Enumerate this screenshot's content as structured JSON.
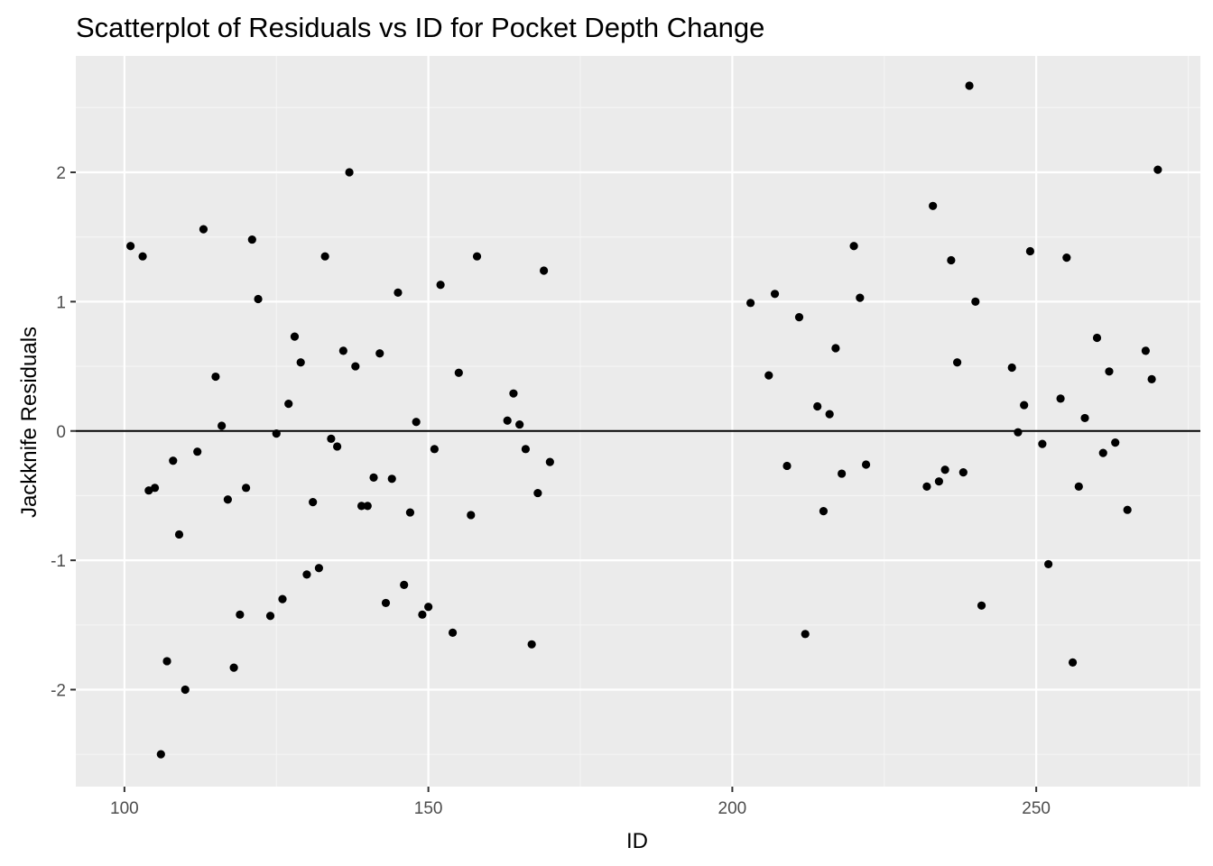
{
  "colors": {
    "panel_background": "#ebebeb",
    "grid_major": "#ffffff",
    "grid_minor": "#f5f5f5",
    "point": "#000000",
    "reference_line": "#000000",
    "tick_label": "#4d4d4d",
    "tick_mark": "#333333"
  },
  "chart_data": {
    "type": "scatter",
    "title": "Scatterplot of Residuals vs ID for Pocket Depth Change",
    "xlabel": "ID",
    "ylabel": "Jackknife Residuals",
    "xlim": [
      92,
      277
    ],
    "ylim": [
      -2.75,
      2.9
    ],
    "x_ticks": [
      100,
      150,
      200,
      250
    ],
    "x_tick_labels": [
      "100",
      "150",
      "200",
      "250"
    ],
    "y_ticks": [
      -2,
      -1,
      0,
      1,
      2
    ],
    "y_tick_labels": [
      "-2",
      "-1",
      "0",
      "1",
      "2"
    ],
    "x_minor_ticks": [
      125,
      175,
      225,
      275
    ],
    "y_minor_ticks": [
      -2.5,
      -1.5,
      -0.5,
      0.5,
      1.5,
      2.5
    ],
    "grid": true,
    "legend": "none",
    "hline": 0,
    "points": [
      {
        "x": 101,
        "y": 1.43
      },
      {
        "x": 103,
        "y": 1.35
      },
      {
        "x": 104,
        "y": -0.46
      },
      {
        "x": 105,
        "y": -0.44
      },
      {
        "x": 106,
        "y": -2.5
      },
      {
        "x": 107,
        "y": -1.78
      },
      {
        "x": 108,
        "y": -0.23
      },
      {
        "x": 109,
        "y": -0.8
      },
      {
        "x": 110,
        "y": -2.0
      },
      {
        "x": 112,
        "y": -0.16
      },
      {
        "x": 113,
        "y": 1.56
      },
      {
        "x": 115,
        "y": 0.42
      },
      {
        "x": 116,
        "y": 0.04
      },
      {
        "x": 117,
        "y": -0.53
      },
      {
        "x": 118,
        "y": -1.83
      },
      {
        "x": 119,
        "y": -1.42
      },
      {
        "x": 120,
        "y": -0.44
      },
      {
        "x": 121,
        "y": 1.48
      },
      {
        "x": 122,
        "y": 1.02
      },
      {
        "x": 124,
        "y": -1.43
      },
      {
        "x": 125,
        "y": -0.02
      },
      {
        "x": 126,
        "y": -1.3
      },
      {
        "x": 127,
        "y": 0.21
      },
      {
        "x": 128,
        "y": 0.73
      },
      {
        "x": 129,
        "y": 0.53
      },
      {
        "x": 130,
        "y": -1.11
      },
      {
        "x": 131,
        "y": -0.55
      },
      {
        "x": 132,
        "y": -1.06
      },
      {
        "x": 133,
        "y": 1.35
      },
      {
        "x": 134,
        "y": -0.06
      },
      {
        "x": 135,
        "y": -0.12
      },
      {
        "x": 136,
        "y": 0.62
      },
      {
        "x": 137,
        "y": 2.0
      },
      {
        "x": 138,
        "y": 0.5
      },
      {
        "x": 139,
        "y": -0.58
      },
      {
        "x": 140,
        "y": -0.58
      },
      {
        "x": 141,
        "y": -0.36
      },
      {
        "x": 142,
        "y": 0.6
      },
      {
        "x": 143,
        "y": -1.33
      },
      {
        "x": 144,
        "y": -0.37
      },
      {
        "x": 145,
        "y": 1.07
      },
      {
        "x": 146,
        "y": -1.19
      },
      {
        "x": 147,
        "y": -0.63
      },
      {
        "x": 148,
        "y": 0.07
      },
      {
        "x": 149,
        "y": -1.42
      },
      {
        "x": 150,
        "y": -1.36
      },
      {
        "x": 151,
        "y": -0.14
      },
      {
        "x": 152,
        "y": 1.13
      },
      {
        "x": 154,
        "y": -1.56
      },
      {
        "x": 155,
        "y": 0.45
      },
      {
        "x": 157,
        "y": -0.65
      },
      {
        "x": 158,
        "y": 1.35
      },
      {
        "x": 163,
        "y": 0.08
      },
      {
        "x": 164,
        "y": 0.29
      },
      {
        "x": 165,
        "y": 0.05
      },
      {
        "x": 166,
        "y": -0.14
      },
      {
        "x": 167,
        "y": -1.65
      },
      {
        "x": 168,
        "y": -0.48
      },
      {
        "x": 169,
        "y": 1.24
      },
      {
        "x": 170,
        "y": -0.24
      },
      {
        "x": 203,
        "y": 0.99
      },
      {
        "x": 206,
        "y": 0.43
      },
      {
        "x": 207,
        "y": 1.06
      },
      {
        "x": 209,
        "y": -0.27
      },
      {
        "x": 211,
        "y": 0.88
      },
      {
        "x": 212,
        "y": -1.57
      },
      {
        "x": 214,
        "y": 0.19
      },
      {
        "x": 215,
        "y": -0.62
      },
      {
        "x": 216,
        "y": 0.13
      },
      {
        "x": 217,
        "y": 0.64
      },
      {
        "x": 218,
        "y": -0.33
      },
      {
        "x": 220,
        "y": 1.43
      },
      {
        "x": 221,
        "y": 1.03
      },
      {
        "x": 222,
        "y": -0.26
      },
      {
        "x": 232,
        "y": -0.43
      },
      {
        "x": 233,
        "y": 1.74
      },
      {
        "x": 234,
        "y": -0.39
      },
      {
        "x": 235,
        "y": -0.3
      },
      {
        "x": 236,
        "y": 1.32
      },
      {
        "x": 237,
        "y": 0.53
      },
      {
        "x": 238,
        "y": -0.32
      },
      {
        "x": 239,
        "y": 2.67
      },
      {
        "x": 240,
        "y": 1.0
      },
      {
        "x": 241,
        "y": -1.35
      },
      {
        "x": 246,
        "y": 0.49
      },
      {
        "x": 247,
        "y": -0.01
      },
      {
        "x": 248,
        "y": 0.2
      },
      {
        "x": 249,
        "y": 1.39
      },
      {
        "x": 251,
        "y": -0.1
      },
      {
        "x": 252,
        "y": -1.03
      },
      {
        "x": 254,
        "y": 0.25
      },
      {
        "x": 255,
        "y": 1.34
      },
      {
        "x": 256,
        "y": -1.79
      },
      {
        "x": 257,
        "y": -0.43
      },
      {
        "x": 258,
        "y": 0.1
      },
      {
        "x": 260,
        "y": 0.72
      },
      {
        "x": 261,
        "y": -0.17
      },
      {
        "x": 262,
        "y": 0.46
      },
      {
        "x": 263,
        "y": -0.09
      },
      {
        "x": 265,
        "y": -0.61
      },
      {
        "x": 268,
        "y": 0.62
      },
      {
        "x": 269,
        "y": 0.4
      },
      {
        "x": 270,
        "y": 2.02
      }
    ]
  }
}
